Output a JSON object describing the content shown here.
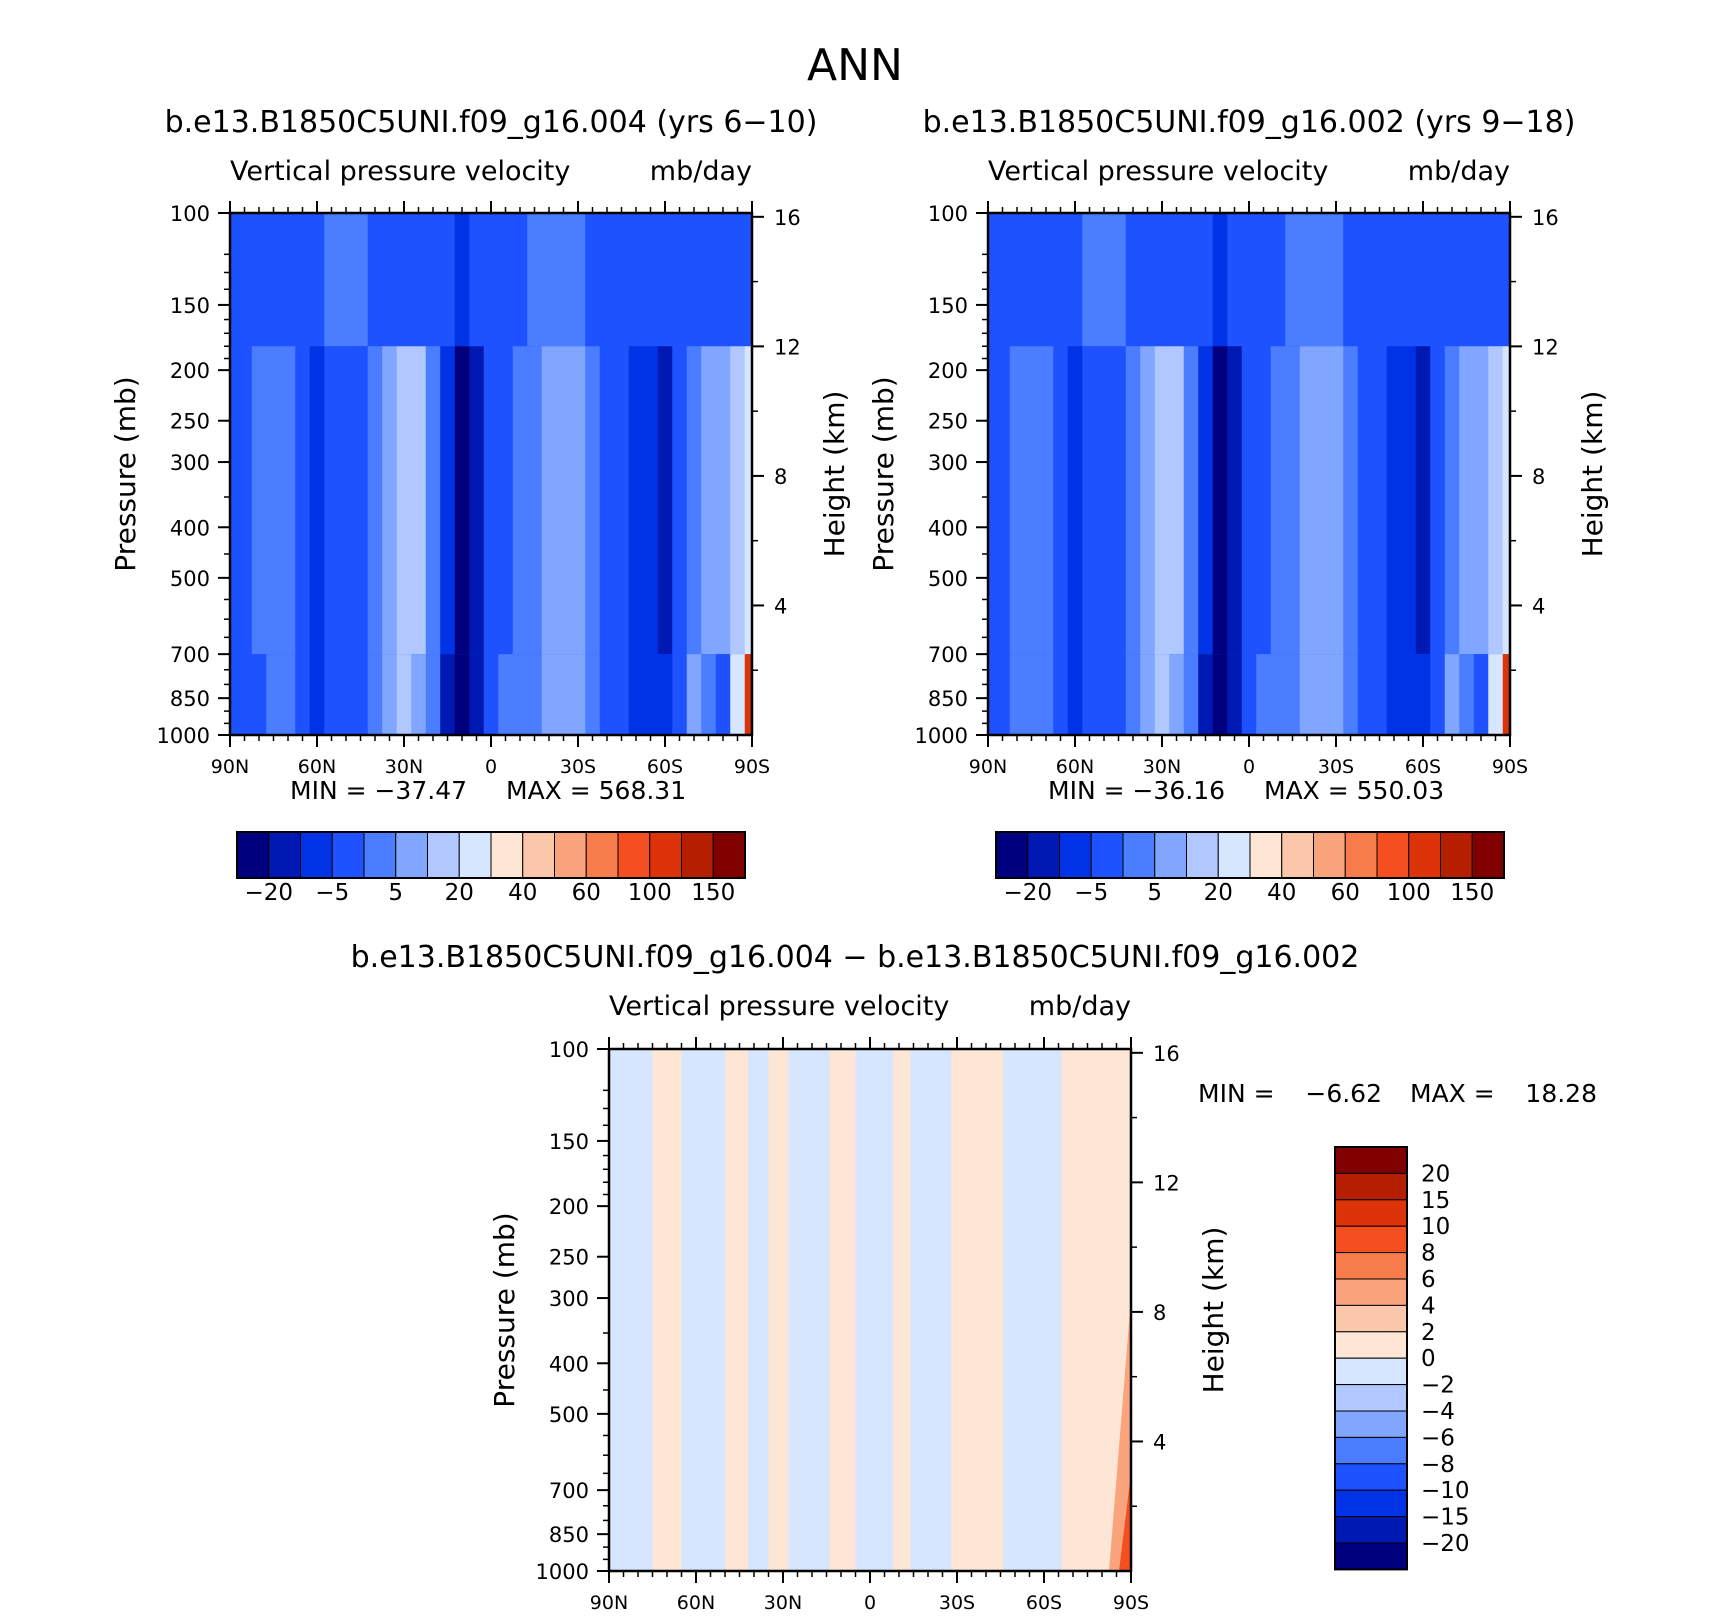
{
  "page_title": "ANN",
  "panel_diff_title": "b.e13.B1850C5UNI.f09_g16.004 − b.e13.B1850C5UNI.f09_g16.002",
  "colors": {
    "abs_levels": [
      "#00007f",
      "#0019b2",
      "#0033e6",
      "#1e52ff",
      "#4a7dff",
      "#80a6ff",
      "#b0c8ff",
      "#d6e6ff",
      "#fde6d5",
      "#fbc7aa",
      "#f9a47c",
      "#f77c4c",
      "#f54e20",
      "#dd3308",
      "#b51f00",
      "#800000"
    ],
    "diff_levels": [
      "#00007f",
      "#0019b2",
      "#0033e6",
      "#1e52ff",
      "#4a7dff",
      "#80a6ff",
      "#b0c8ff",
      "#d6e6ff",
      "#fde6d5",
      "#fbc7aa",
      "#f9a47c",
      "#f77c4c",
      "#f54e20",
      "#dd3308",
      "#b51f00",
      "#800000"
    ]
  },
  "chart_data": [
    {
      "type": "heatmap",
      "title": "b.e13.B1850C5UNI.f09_g16.004 (yrs 6−10)",
      "subtitle_left": "Vertical pressure velocity",
      "subtitle_right": "mb/day",
      "xlabel": "",
      "ylabel": "Pressure (mb)",
      "ylabel_right": "Height (km)",
      "x_ticks": [
        "90N",
        "60N",
        "30N",
        "0",
        "30S",
        "60S",
        "90S"
      ],
      "y_ticks": [
        100,
        150,
        200,
        250,
        300,
        400,
        500,
        700,
        850,
        1000
      ],
      "y_ticks_right": [
        16,
        12,
        8,
        4
      ],
      "y_scale": "log",
      "min_label": "MIN = −37.47",
      "max_label": "MAX = 568.31",
      "colorbar_labels": [
        "−20",
        "−5",
        "5",
        "20",
        "40",
        "60",
        "100",
        "150"
      ],
      "field": [
        {
          "lat": 90,
          "top": 3,
          "mid": 3,
          "bot": 3
        },
        {
          "lat": 85,
          "top": 3,
          "mid": 3,
          "bot": 3
        },
        {
          "lat": 80,
          "top": 3,
          "mid": 4,
          "bot": 3
        },
        {
          "lat": 75,
          "top": 3,
          "mid": 4,
          "bot": 4
        },
        {
          "lat": 70,
          "top": 3,
          "mid": 4,
          "bot": 4
        },
        {
          "lat": 65,
          "top": 3,
          "mid": 3,
          "bot": 3
        },
        {
          "lat": 60,
          "top": 3,
          "mid": 2,
          "bot": 2
        },
        {
          "lat": 55,
          "top": 4,
          "mid": 3,
          "bot": 3
        },
        {
          "lat": 50,
          "top": 4,
          "mid": 3,
          "bot": 3
        },
        {
          "lat": 45,
          "top": 4,
          "mid": 3,
          "bot": 3
        },
        {
          "lat": 40,
          "top": 3,
          "mid": 4,
          "bot": 4
        },
        {
          "lat": 35,
          "top": 3,
          "mid": 5,
          "bot": 5
        },
        {
          "lat": 30,
          "top": 3,
          "mid": 6,
          "bot": 6
        },
        {
          "lat": 25,
          "top": 3,
          "mid": 6,
          "bot": 5
        },
        {
          "lat": 20,
          "top": 3,
          "mid": 4,
          "bot": 4
        },
        {
          "lat": 15,
          "top": 3,
          "mid": 2,
          "bot": 1
        },
        {
          "lat": 10,
          "top": 2,
          "mid": 0,
          "bot": 0
        },
        {
          "lat": 5,
          "top": 3,
          "mid": 1,
          "bot": 1
        },
        {
          "lat": 0,
          "top": 3,
          "mid": 3,
          "bot": 3
        },
        {
          "lat": -5,
          "top": 3,
          "mid": 3,
          "bot": 4
        },
        {
          "lat": -10,
          "top": 3,
          "mid": 4,
          "bot": 4
        },
        {
          "lat": -15,
          "top": 4,
          "mid": 4,
          "bot": 4
        },
        {
          "lat": -20,
          "top": 4,
          "mid": 5,
          "bot": 5
        },
        {
          "lat": -25,
          "top": 4,
          "mid": 5,
          "bot": 5
        },
        {
          "lat": -30,
          "top": 4,
          "mid": 5,
          "bot": 5
        },
        {
          "lat": -35,
          "top": 3,
          "mid": 4,
          "bot": 4
        },
        {
          "lat": -40,
          "top": 3,
          "mid": 3,
          "bot": 3
        },
        {
          "lat": -45,
          "top": 3,
          "mid": 3,
          "bot": 3
        },
        {
          "lat": -50,
          "top": 3,
          "mid": 2,
          "bot": 2
        },
        {
          "lat": -55,
          "top": 3,
          "mid": 2,
          "bot": 2
        },
        {
          "lat": -60,
          "top": 3,
          "mid": 1,
          "bot": 2
        },
        {
          "lat": -65,
          "top": 3,
          "mid": 3,
          "bot": 3
        },
        {
          "lat": -70,
          "top": 3,
          "mid": 4,
          "bot": 5
        },
        {
          "lat": -75,
          "top": 3,
          "mid": 5,
          "bot": 4
        },
        {
          "lat": -80,
          "top": 3,
          "mid": 5,
          "bot": 3
        },
        {
          "lat": -85,
          "top": 3,
          "mid": 6,
          "bot": 7
        },
        {
          "lat": -90,
          "top": 3,
          "mid": 7,
          "bot": 13
        }
      ]
    },
    {
      "type": "heatmap",
      "title": "b.e13.B1850C5UNI.f09_g16.002 (yrs 9−18)",
      "subtitle_left": "Vertical pressure velocity",
      "subtitle_right": "mb/day",
      "xlabel": "",
      "ylabel": "Pressure (mb)",
      "ylabel_right": "Height (km)",
      "x_ticks": [
        "90N",
        "60N",
        "30N",
        "0",
        "30S",
        "60S",
        "90S"
      ],
      "y_ticks": [
        100,
        150,
        200,
        250,
        300,
        400,
        500,
        700,
        850,
        1000
      ],
      "y_ticks_right": [
        16,
        12,
        8,
        4
      ],
      "y_scale": "log",
      "min_label": "MIN = −36.16",
      "max_label": "MAX = 550.03",
      "colorbar_labels": [
        "−20",
        "−5",
        "5",
        "20",
        "40",
        "60",
        "100",
        "150"
      ],
      "field": [
        {
          "lat": 90,
          "top": 3,
          "mid": 3,
          "bot": 3
        },
        {
          "lat": 85,
          "top": 3,
          "mid": 3,
          "bot": 3
        },
        {
          "lat": 80,
          "top": 3,
          "mid": 4,
          "bot": 4
        },
        {
          "lat": 75,
          "top": 3,
          "mid": 4,
          "bot": 4
        },
        {
          "lat": 70,
          "top": 3,
          "mid": 4,
          "bot": 4
        },
        {
          "lat": 65,
          "top": 3,
          "mid": 3,
          "bot": 3
        },
        {
          "lat": 60,
          "top": 3,
          "mid": 2,
          "bot": 2
        },
        {
          "lat": 55,
          "top": 4,
          "mid": 3,
          "bot": 3
        },
        {
          "lat": 50,
          "top": 4,
          "mid": 3,
          "bot": 3
        },
        {
          "lat": 45,
          "top": 4,
          "mid": 3,
          "bot": 3
        },
        {
          "lat": 40,
          "top": 3,
          "mid": 4,
          "bot": 4
        },
        {
          "lat": 35,
          "top": 3,
          "mid": 5,
          "bot": 5
        },
        {
          "lat": 30,
          "top": 3,
          "mid": 6,
          "bot": 6
        },
        {
          "lat": 25,
          "top": 3,
          "mid": 6,
          "bot": 5
        },
        {
          "lat": 20,
          "top": 3,
          "mid": 4,
          "bot": 4
        },
        {
          "lat": 15,
          "top": 3,
          "mid": 2,
          "bot": 1
        },
        {
          "lat": 10,
          "top": 2,
          "mid": 0,
          "bot": 0
        },
        {
          "lat": 5,
          "top": 3,
          "mid": 1,
          "bot": 1
        },
        {
          "lat": 0,
          "top": 3,
          "mid": 3,
          "bot": 3
        },
        {
          "lat": -5,
          "top": 3,
          "mid": 3,
          "bot": 4
        },
        {
          "lat": -10,
          "top": 3,
          "mid": 4,
          "bot": 4
        },
        {
          "lat": -15,
          "top": 4,
          "mid": 4,
          "bot": 4
        },
        {
          "lat": -20,
          "top": 4,
          "mid": 5,
          "bot": 5
        },
        {
          "lat": -25,
          "top": 4,
          "mid": 5,
          "bot": 5
        },
        {
          "lat": -30,
          "top": 4,
          "mid": 5,
          "bot": 5
        },
        {
          "lat": -35,
          "top": 3,
          "mid": 4,
          "bot": 4
        },
        {
          "lat": -40,
          "top": 3,
          "mid": 3,
          "bot": 3
        },
        {
          "lat": -45,
          "top": 3,
          "mid": 3,
          "bot": 3
        },
        {
          "lat": -50,
          "top": 3,
          "mid": 2,
          "bot": 2
        },
        {
          "lat": -55,
          "top": 3,
          "mid": 2,
          "bot": 2
        },
        {
          "lat": -60,
          "top": 3,
          "mid": 1,
          "bot": 2
        },
        {
          "lat": -65,
          "top": 3,
          "mid": 3,
          "bot": 3
        },
        {
          "lat": -70,
          "top": 3,
          "mid": 4,
          "bot": 5
        },
        {
          "lat": -75,
          "top": 3,
          "mid": 5,
          "bot": 4
        },
        {
          "lat": -80,
          "top": 3,
          "mid": 5,
          "bot": 3
        },
        {
          "lat": -85,
          "top": 3,
          "mid": 6,
          "bot": 7
        },
        {
          "lat": -90,
          "top": 3,
          "mid": 7,
          "bot": 13
        }
      ]
    },
    {
      "type": "heatmap",
      "title": "b.e13.B1850C5UNI.f09_g16.004 − b.e13.B1850C5UNI.f09_g16.002",
      "subtitle_left": "Vertical pressure velocity",
      "subtitle_right": "mb/day",
      "xlabel": "",
      "ylabel": "Pressure (mb)",
      "ylabel_right": "Height (km)",
      "x_ticks": [
        "90N",
        "60N",
        "30N",
        "0",
        "30S",
        "60S",
        "90S"
      ],
      "y_ticks": [
        100,
        150,
        200,
        250,
        300,
        400,
        500,
        700,
        850,
        1000
      ],
      "y_ticks_right": [
        16,
        12,
        8,
        4
      ],
      "y_scale": "log",
      "min_label": "MIN =",
      "min_value": "−6.62",
      "max_label": "MAX =",
      "max_value": "18.28",
      "colorbar_labels": [
        "20",
        "15",
        "10",
        "8",
        "6",
        "4",
        "2",
        "0",
        "−2",
        "−4",
        "−6",
        "−8",
        "−10",
        "−15",
        "−20"
      ],
      "bands": [
        {
          "from_lat": 90,
          "to_lat": 75,
          "level": 7
        },
        {
          "from_lat": 75,
          "to_lat": 65,
          "level": 8
        },
        {
          "from_lat": 65,
          "to_lat": 50,
          "level": 7
        },
        {
          "from_lat": 50,
          "to_lat": 42,
          "level": 8
        },
        {
          "from_lat": 42,
          "to_lat": 35,
          "level": 7
        },
        {
          "from_lat": 35,
          "to_lat": 28,
          "level": 8
        },
        {
          "from_lat": 28,
          "to_lat": 14,
          "level": 7
        },
        {
          "from_lat": 14,
          "to_lat": 5,
          "level": 8
        },
        {
          "from_lat": 5,
          "to_lat": -8,
          "level": 7
        },
        {
          "from_lat": -8,
          "to_lat": -14,
          "level": 8
        },
        {
          "from_lat": -14,
          "to_lat": -28,
          "level": 7
        },
        {
          "from_lat": -28,
          "to_lat": -46,
          "level": 8
        },
        {
          "from_lat": -46,
          "to_lat": -66,
          "level": 7
        },
        {
          "from_lat": -66,
          "to_lat": -90,
          "level": 8
        }
      ]
    }
  ]
}
